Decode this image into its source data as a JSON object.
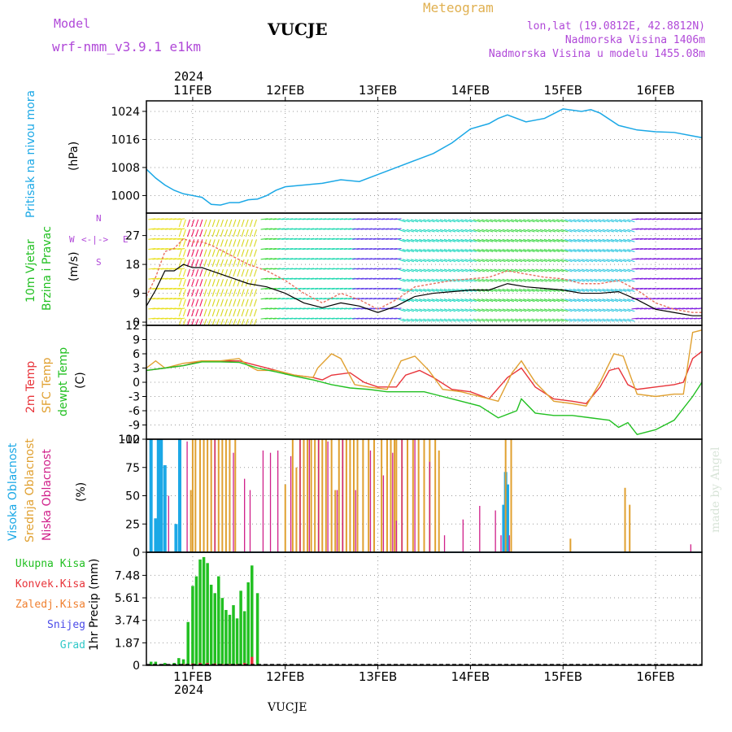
{
  "header": {
    "model_label": "Model",
    "model_name": "wrf-nmm_v3.9.1 e1km",
    "station": "VUCJE",
    "meteogram": "Meteogram",
    "lonlat": "lon,lat (19.0812E, 42.8812N)",
    "altitude": "Nadmorska Visina 1406m",
    "model_altitude": "Nadmorska Visina u modelu 1455.08m",
    "year_top": "2024",
    "year_bottom": "2024",
    "footer_station": "VUCJE",
    "watermark": "made by Angel"
  },
  "colors": {
    "pressure": "#1ba8e6",
    "green": "#22c022",
    "red": "#e8343a",
    "orange": "#f08030",
    "gold": "#e0a030",
    "magenta": "#d0208a",
    "blue": "#1ba8e6",
    "purple": "#b048d8",
    "snow": "#4a4ae8",
    "graupel": "#30c8c8"
  },
  "chart_data": [
    {
      "type": "line",
      "panel": "pressure",
      "ylabel": [
        "Pritisak na nivou mora",
        "(hPa)"
      ],
      "x_ticks": [
        "11FEB",
        "12FEB",
        "13FEB",
        "14FEB",
        "15FEB",
        "16FEB"
      ],
      "yticks": [
        1000,
        1008,
        1016,
        1024
      ],
      "ylim": [
        995,
        1027
      ],
      "xlim": [
        0.5,
        6.5
      ],
      "series": [
        {
          "x": [
            0.5,
            0.6,
            0.7,
            0.8,
            0.9,
            1.0,
            1.1,
            1.2,
            1.3,
            1.4,
            1.5,
            1.6,
            1.7,
            1.8,
            1.9,
            2.0,
            2.2,
            2.4,
            2.6,
            2.8,
            3.0,
            3.2,
            3.4,
            3.6,
            3.8,
            4.0,
            4.2,
            4.3,
            4.4,
            4.6,
            4.8,
            5.0,
            5.2,
            5.3,
            5.4,
            5.6,
            5.8,
            6.0,
            6.2,
            6.4,
            6.5
          ],
          "y": [
            1007.5,
            1005,
            1003,
            1001.5,
            1000.5,
            1000,
            999.5,
            997.5,
            997.3,
            998,
            998,
            998.8,
            999,
            1000,
            1001.5,
            1002.5,
            1003,
            1003.5,
            1004.5,
            1004,
            1006,
            1008,
            1010,
            1012,
            1015,
            1019,
            1020.5,
            1022,
            1023,
            1021,
            1022,
            1024.7,
            1024,
            1024.5,
            1023.5,
            1020,
            1018.7,
            1018.2,
            1018,
            1017,
            1016.5
          ]
        }
      ]
    },
    {
      "type": "line",
      "panel": "wind",
      "ylabel": [
        "10m Vjetar",
        "Brzina i Pravac",
        "(m/s)"
      ],
      "compass": [
        "N",
        "E",
        "W",
        "S"
      ],
      "yticks": [
        0,
        9,
        18,
        27
      ],
      "ylim": [
        -1,
        34
      ],
      "xlim": [
        0.5,
        6.5
      ],
      "series": [
        {
          "name": "speed",
          "x": [
            0.5,
            0.6,
            0.7,
            0.8,
            0.9,
            1.0,
            1.1,
            1.2,
            1.4,
            1.6,
            1.8,
            2.0,
            2.2,
            2.4,
            2.6,
            2.8,
            3.0,
            3.2,
            3.4,
            3.6,
            3.8,
            4.0,
            4.2,
            4.4,
            4.6,
            4.8,
            5.0,
            5.2,
            5.4,
            5.6,
            5.8,
            6.0,
            6.2,
            6.4,
            6.5
          ],
          "y": [
            5,
            10,
            16,
            16,
            18,
            17,
            17,
            16,
            14,
            12,
            11,
            9,
            6,
            4.5,
            6,
            5,
            3,
            5,
            8,
            9,
            9.5,
            10,
            10,
            12,
            11,
            10.5,
            10,
            9,
            9,
            9.5,
            7,
            4,
            3,
            2,
            2
          ]
        },
        {
          "name": "gust",
          "x": [
            0.5,
            0.6,
            0.7,
            0.8,
            0.9,
            1.0,
            1.1,
            1.2,
            1.4,
            1.6,
            1.8,
            2.0,
            2.2,
            2.4,
            2.6,
            2.8,
            3.0,
            3.2,
            3.4,
            3.6,
            3.8,
            4.0,
            4.2,
            4.4,
            4.6,
            4.8,
            5.0,
            5.2,
            5.4,
            5.6,
            5.8,
            6.0,
            6.2,
            6.4,
            6.5
          ],
          "y": [
            8,
            14,
            22,
            23,
            26,
            25,
            25,
            24,
            21,
            18,
            16,
            13,
            9,
            6,
            9,
            7,
            4,
            7,
            11,
            12,
            13,
            13.5,
            14,
            16,
            15,
            14,
            13.5,
            12,
            12,
            13,
            10,
            6,
            4,
            3,
            3
          ]
        }
      ]
    },
    {
      "type": "line",
      "panel": "temperature",
      "ylabel": [
        "2m Temp",
        "SFC Temp",
        "dewpt Temp",
        "(C)"
      ],
      "yticks": [
        -12,
        -9,
        -6,
        -3,
        0,
        3,
        6,
        9,
        12
      ],
      "ylim": [
        -12,
        12
      ],
      "xlim": [
        0.5,
        6.5
      ],
      "series": [
        {
          "name": "2m Temp",
          "x": [
            0.5,
            0.7,
            0.9,
            1.1,
            1.3,
            1.5,
            1.7,
            1.9,
            2.1,
            2.3,
            2.4,
            2.5,
            2.7,
            2.85,
            3.0,
            3.2,
            3.3,
            3.45,
            3.6,
            3.8,
            4.0,
            4.2,
            4.4,
            4.55,
            4.7,
            4.9,
            5.1,
            5.25,
            5.4,
            5.5,
            5.6,
            5.7,
            5.8,
            6.0,
            6.2,
            6.3,
            6.4,
            6.5
          ],
          "y": [
            2.5,
            3,
            3.5,
            4.5,
            4.5,
            4.5,
            3.5,
            2.5,
            1.5,
            1,
            0.5,
            1.5,
            2,
            0,
            -1,
            -1,
            1.5,
            2.5,
            1,
            -1.5,
            -2,
            -3.5,
            1,
            3,
            -1,
            -3.5,
            -4,
            -4.5,
            -1,
            2.5,
            3,
            -0.5,
            -1.5,
            -1,
            -0.5,
            0,
            5,
            6.5
          ]
        },
        {
          "name": "SFC Temp",
          "x": [
            0.5,
            0.6,
            0.7,
            0.9,
            1.1,
            1.3,
            1.5,
            1.6,
            1.7,
            1.9,
            2.1,
            2.3,
            2.35,
            2.5,
            2.6,
            2.75,
            2.9,
            3.1,
            3.25,
            3.4,
            3.55,
            3.7,
            3.9,
            4.1,
            4.3,
            4.45,
            4.55,
            4.7,
            4.9,
            5.1,
            5.25,
            5.4,
            5.55,
            5.65,
            5.8,
            6.0,
            6.2,
            6.3,
            6.4,
            6.5
          ],
          "y": [
            3,
            4.5,
            3,
            4,
            4.5,
            4.5,
            5,
            3.5,
            2.5,
            2.5,
            1.5,
            1,
            3,
            6,
            5,
            -0.5,
            -1,
            -1.5,
            4.5,
            5.5,
            2.5,
            -1.5,
            -2,
            -3,
            -4,
            2,
            4.5,
            0,
            -4,
            -4.5,
            -5,
            0,
            6,
            5.5,
            -2.5,
            -3,
            -2.5,
            -2.5,
            10.5,
            11
          ]
        },
        {
          "name": "dewpt Temp",
          "x": [
            0.5,
            0.7,
            0.9,
            1.1,
            1.3,
            1.5,
            1.7,
            1.9,
            2.1,
            2.3,
            2.5,
            2.7,
            2.9,
            3.1,
            3.3,
            3.5,
            3.7,
            3.9,
            4.1,
            4.3,
            4.5,
            4.55,
            4.7,
            4.9,
            5.1,
            5.3,
            5.5,
            5.6,
            5.7,
            5.8,
            6.0,
            6.2,
            6.4,
            6.5
          ],
          "y": [
            2.5,
            3,
            3.5,
            4.3,
            4.3,
            4.2,
            3,
            2.2,
            1.3,
            0.5,
            -0.5,
            -1.2,
            -1.5,
            -2,
            -2,
            -2,
            -3,
            -4,
            -5,
            -7.5,
            -6,
            -3.5,
            -6.5,
            -7,
            -7,
            -7.5,
            -8,
            -9.5,
            -8.5,
            -11,
            -10,
            -8,
            -3,
            0
          ]
        }
      ]
    },
    {
      "type": "bar",
      "panel": "cloud",
      "ylabel": [
        "Visoka Oblacnost",
        "Srednja Oblacnost",
        "Niska Oblacnost",
        "(%)"
      ],
      "yticks": [
        0,
        25,
        50,
        75,
        100
      ],
      "ylim": [
        0,
        100
      ],
      "xlim": [
        0.5,
        6.5
      ],
      "series": [
        {
          "name": "Visoka Oblacnost",
          "x": [
            0.55,
            0.6,
            0.63,
            0.66,
            0.7,
            0.82,
            0.86,
            4.36,
            4.38,
            4.4
          ],
          "y": [
            100,
            30,
            100,
            100,
            77,
            25,
            100,
            42,
            71,
            60
          ]
        },
        {
          "name": "Srednja Oblacnost",
          "x": [
            0.98,
            1.0,
            1.03,
            1.08,
            1.12,
            1.16,
            1.2,
            1.24,
            1.28,
            1.32,
            1.36,
            1.4,
            1.46,
            2.0,
            2.08,
            2.12,
            2.16,
            2.2,
            2.24,
            2.28,
            2.32,
            2.36,
            2.4,
            2.44,
            2.5,
            2.54,
            2.58,
            2.62,
            2.66,
            2.7,
            2.74,
            2.78,
            2.84,
            2.9,
            2.96,
            3.04,
            3.1,
            3.14,
            3.18,
            3.2,
            3.26,
            3.32,
            3.38,
            3.44,
            3.5,
            3.56,
            3.62,
            3.66,
            4.38,
            4.44,
            5.08,
            5.67,
            5.72
          ],
          "y": [
            55,
            100,
            100,
            100,
            100,
            100,
            100,
            100,
            100,
            100,
            100,
            100,
            100,
            60,
            100,
            75,
            100,
            100,
            100,
            100,
            100,
            100,
            100,
            100,
            100,
            55,
            100,
            100,
            100,
            100,
            100,
            100,
            100,
            100,
            100,
            100,
            100,
            100,
            100,
            100,
            100,
            100,
            100,
            100,
            100,
            100,
            100,
            90,
            100,
            100,
            12,
            57,
            42
          ]
        },
        {
          "name": "Niska Oblacnost",
          "x": [
            0.74,
            0.94,
            1.24,
            1.44,
            1.56,
            1.62,
            1.76,
            1.84,
            1.92,
            2.06,
            2.16,
            2.26,
            2.36,
            2.46,
            2.56,
            2.62,
            2.76,
            2.92,
            3.06,
            3.16,
            3.2,
            3.26,
            3.4,
            3.56,
            3.72,
            3.92,
            4.1,
            4.27,
            4.33,
            4.42,
            6.38
          ],
          "y": [
            50,
            98,
            100,
            88,
            65,
            55,
            90,
            88,
            90,
            85,
            100,
            100,
            100,
            98,
            55,
            100,
            55,
            90,
            68,
            88,
            28,
            100,
            100,
            80,
            15,
            29,
            41,
            37,
            15,
            15,
            7
          ]
        }
      ]
    },
    {
      "type": "bar",
      "panel": "precip",
      "ylabel": [
        "1hr Precip (mm)"
      ],
      "legend": [
        "Ukupna Kisa",
        "Konvek.Kisa",
        "Zaledj.Kisa",
        "Snijeg",
        "Grad"
      ],
      "yticks": [
        0,
        1.87,
        3.74,
        5.61,
        7.48
      ],
      "ylim": [
        0,
        9.4
      ],
      "xlim": [
        0.5,
        6.5
      ],
      "series": [
        {
          "name": "Ukupna Kisa",
          "x": [
            0.55,
            0.6,
            0.65,
            0.7,
            0.75,
            0.8,
            0.85,
            0.9,
            0.95,
            1.0,
            1.04,
            1.08,
            1.12,
            1.16,
            1.2,
            1.24,
            1.28,
            1.32,
            1.36,
            1.4,
            1.44,
            1.48,
            1.52,
            1.56,
            1.6,
            1.64,
            1.7
          ],
          "y": [
            0.3,
            0.3,
            0.1,
            0.2,
            0.1,
            0.2,
            0.6,
            0.5,
            3.6,
            6.6,
            7.4,
            8.8,
            9.0,
            8.5,
            6.7,
            6.0,
            7.4,
            5.6,
            4.6,
            4.2,
            5.0,
            3.9,
            6.2,
            4.5,
            6.9,
            8.3,
            6.0
          ]
        },
        {
          "name": "Konvek.Kisa",
          "x": [
            0.9,
            1.0,
            1.08,
            1.16,
            1.24,
            1.32,
            1.4,
            1.48,
            1.56,
            1.64
          ],
          "y": [
            0.1,
            0.15,
            0.2,
            0.2,
            0.15,
            0.1,
            0.1,
            0.1,
            0.2,
            0.7
          ]
        }
      ]
    }
  ]
}
